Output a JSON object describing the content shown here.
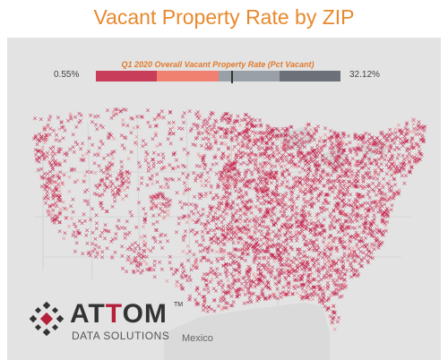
{
  "title": "Vacant Property Rate by ZIP",
  "legend": {
    "title": "Q1 2020 Overall Vacant Property Rate (Pct Vacant)",
    "min_label": "0.55%",
    "max_label": "32.12%",
    "colors": [
      "#c83d5a",
      "#f08070",
      "#9aa0a8",
      "#6b7079"
    ]
  },
  "map": {
    "country_label": "Mexico",
    "point_color": "#c21a45",
    "point_color_light": "#f07a80",
    "land_color": "#e4e4e4",
    "water_color": "#dcdcdc"
  },
  "logo": {
    "word_part1": "AT",
    "word_part2": "T",
    "word_part3": "OM",
    "trademark": "TM",
    "subtitle": "DATA SOLUTIONS"
  }
}
